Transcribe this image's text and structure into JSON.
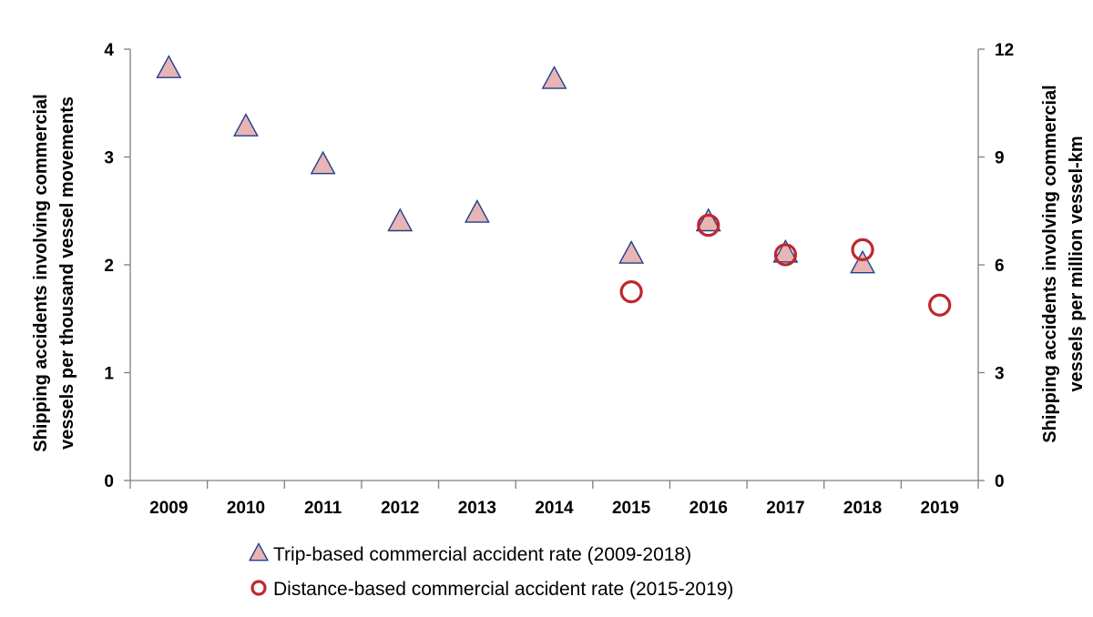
{
  "chart_data": {
    "type": "scatter",
    "title": "",
    "categories": [
      "2009",
      "2010",
      "2011",
      "2012",
      "2013",
      "2014",
      "2015",
      "2016",
      "2017",
      "2018",
      "2019"
    ],
    "y_left": {
      "label_lines": [
        "Shipping  accidents involving commercial",
        "vessels per thousand vessel movements"
      ],
      "range": [
        0,
        4
      ],
      "ticks": [
        "0",
        "1",
        "2",
        "3",
        "4"
      ]
    },
    "y_right": {
      "label_lines": [
        "Shipping  accidents involving commercial",
        "vessels per million vessel-km"
      ],
      "range": [
        0,
        12
      ],
      "ticks": [
        "0",
        "3",
        "6",
        "9",
        "12"
      ]
    },
    "series": [
      {
        "name": "Trip-based commercial accident rate (2009-2018)",
        "axis": "left",
        "marker": "triangle",
        "fill": "#e8b4b4",
        "stroke": "#1f3f8f",
        "points": [
          {
            "x": "2009",
            "y": 3.82
          },
          {
            "x": "2010",
            "y": 3.28
          },
          {
            "x": "2011",
            "y": 2.93
          },
          {
            "x": "2012",
            "y": 2.4
          },
          {
            "x": "2013",
            "y": 2.48
          },
          {
            "x": "2014",
            "y": 3.72
          },
          {
            "x": "2015",
            "y": 2.1
          },
          {
            "x": "2016",
            "y": 2.4
          },
          {
            "x": "2017",
            "y": 2.11
          },
          {
            "x": "2018",
            "y": 2.01
          }
        ]
      },
      {
        "name": "Distance-based commercial accident rate (2015-2019)",
        "axis": "right",
        "marker": "circle",
        "fill": "none",
        "stroke": "#c0272d",
        "points": [
          {
            "x": "2015",
            "y": 5.25
          },
          {
            "x": "2016",
            "y": 7.1
          },
          {
            "x": "2017",
            "y": 6.28
          },
          {
            "x": "2018",
            "y": 6.42
          },
          {
            "x": "2019",
            "y": 4.88
          }
        ]
      }
    ],
    "legend_position": "bottom-center",
    "grid": false
  }
}
